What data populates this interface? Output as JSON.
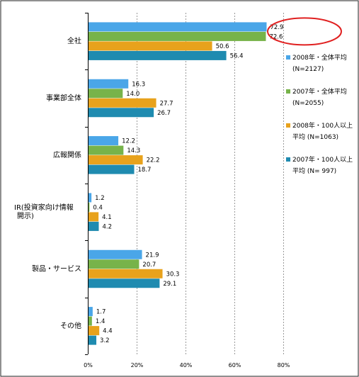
{
  "chart_data": {
    "type": "bar",
    "orientation": "horizontal",
    "categories": [
      [
        "全社"
      ],
      [
        "事業部全体"
      ],
      [
        "広報関係"
      ],
      [
        "IR(投資家向け情報",
        "開示)"
      ],
      [
        "製品・サービス"
      ],
      [
        "その他"
      ]
    ],
    "series": [
      {
        "name": [
          "2008年・全体平均",
          "(N=2127)"
        ],
        "color": "#4aa6e8",
        "values": [
          72.9,
          16.3,
          12.2,
          1.2,
          21.9,
          1.7
        ]
      },
      {
        "name": [
          "2007年・全体平均",
          "(N=2055)"
        ],
        "color": "#77b34a",
        "values": [
          72.6,
          14.0,
          14.3,
          0.4,
          20.7,
          1.4
        ]
      },
      {
        "name": [
          "2008年・100人以上",
          "平均 (N=1063)"
        ],
        "color": "#e8a21c",
        "values": [
          50.6,
          27.7,
          22.2,
          4.1,
          30.3,
          4.4
        ]
      },
      {
        "name": [
          "2007年・100人以上",
          "平均 (N= 997)"
        ],
        "color": "#1f8bb0",
        "values": [
          56.4,
          26.7,
          18.7,
          4.2,
          29.1,
          3.2
        ]
      }
    ],
    "value_labels": [
      [
        "72.9",
        "16.3",
        "12.2",
        "1.2",
        "21.9",
        "1.7"
      ],
      [
        "72.6",
        "14.0",
        "14.3",
        "0.4",
        "20.7",
        "1.4"
      ],
      [
        "50.6",
        "27.7",
        "22.2",
        "4.1",
        "30.3",
        "4.4"
      ],
      [
        "56.4",
        "26.7",
        "18.7",
        "4.2",
        "29.1",
        "3.2"
      ]
    ],
    "xticks": [
      "0%",
      "20%",
      "40%",
      "60%",
      "80%"
    ],
    "xlim": [
      0,
      80
    ],
    "grid": true,
    "legend_position": "right",
    "annotation": {
      "shape": "ellipse",
      "color": "#e02020",
      "highlight": "72.9 / 72.6"
    }
  }
}
